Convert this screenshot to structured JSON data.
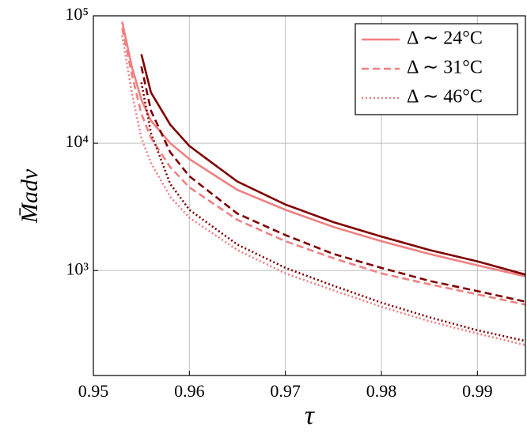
{
  "chart_data": {
    "type": "line",
    "xlabel": "τ",
    "ylabel": "M̄adv",
    "x": [
      0.953,
      0.954,
      0.955,
      0.956,
      0.958,
      0.96,
      0.965,
      0.97,
      0.975,
      0.98,
      0.985,
      0.99,
      0.995
    ],
    "series": [
      {
        "name": "Δ ∼ 24°C",
        "color": "#f08080",
        "dash": "solid",
        "values": [
          90000,
          40000,
          22000,
          15000,
          10000,
          7500,
          4300,
          3000,
          2200,
          1700,
          1350,
          1100,
          900
        ]
      },
      {
        "name": "Δ ∼ 31°C",
        "color": "#f08080",
        "dash": "dashed",
        "values": [
          80000,
          35000,
          17000,
          11000,
          6500,
          4500,
          2500,
          1700,
          1250,
          950,
          780,
          650,
          540
        ]
      },
      {
        "name": "Δ ∼ 46°C",
        "color": "#f08080",
        "dash": "dotted",
        "values": [
          70000,
          25000,
          11000,
          7000,
          3800,
          2600,
          1450,
          950,
          700,
          520,
          400,
          320,
          260
        ]
      },
      {
        "color": "#800000",
        "dash": "solid",
        "values": [
          null,
          null,
          50000,
          25000,
          14000,
          9500,
          5000,
          3300,
          2400,
          1850,
          1450,
          1180,
          930
        ]
      },
      {
        "color": "#800000",
        "dash": "dashed",
        "values": [
          null,
          null,
          40000,
          18000,
          8500,
          5500,
          2800,
          1900,
          1350,
          1050,
          830,
          690,
          570
        ]
      },
      {
        "color": "#800000",
        "dash": "dotted",
        "values": [
          null,
          null,
          30000,
          12000,
          4800,
          3000,
          1600,
          1050,
          760,
          560,
          430,
          340,
          280
        ]
      }
    ],
    "xlim": [
      0.95,
      0.995
    ],
    "xticks": [
      0.95,
      0.96,
      0.97,
      0.98,
      0.99
    ],
    "ylim": [
      150,
      100000
    ],
    "ylog": true,
    "yticks": [
      {
        "value": 1000,
        "label": "10³"
      },
      {
        "value": 10000,
        "label": "10⁴"
      },
      {
        "value": 100000,
        "label": "10⁵"
      }
    ],
    "grid": true,
    "legend": "upper right"
  }
}
